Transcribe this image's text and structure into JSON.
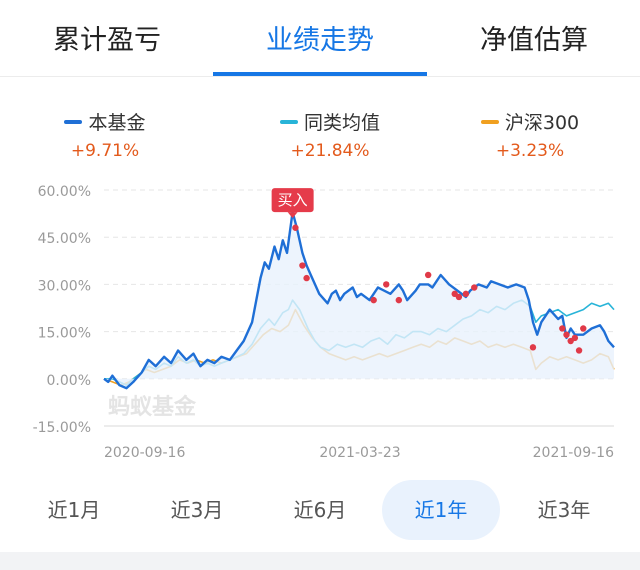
{
  "tabs": [
    {
      "label": "累计盈亏",
      "active": false
    },
    {
      "label": "业绩走势",
      "active": true
    },
    {
      "label": "净值估算",
      "active": false
    }
  ],
  "legend": [
    {
      "name": "本基金",
      "return": "+9.71%",
      "color": "#1f6fd6"
    },
    {
      "name": "同类均值",
      "return": "+21.84%",
      "color": "#28b4d8"
    },
    {
      "name": "沪深300",
      "return": "+3.23%",
      "color": "#f0a020"
    }
  ],
  "chart_data": {
    "type": "line",
    "ylim": [
      -15,
      60
    ],
    "y_ticks": [
      "60.00%",
      "45.00%",
      "30.00%",
      "15.00%",
      "0.00%",
      "-15.00%"
    ],
    "x_ticks": [
      "2020-09-16",
      "2021-03-23",
      "2021-09-16"
    ],
    "x_range": [
      "2020-09-16",
      "2021-09-16"
    ],
    "grid": true,
    "watermark": "蚂蚁基金",
    "buy_label": "买入",
    "buy_marker": {
      "x": "2021-01-29",
      "y": 52
    },
    "series": [
      {
        "name": "本基金",
        "color": "#1f6fd6",
        "fill": true,
        "points": [
          [
            "2020-09-16",
            0
          ],
          [
            "2020-09-19",
            -1
          ],
          [
            "2020-09-22",
            1
          ],
          [
            "2020-09-27",
            -2
          ],
          [
            "2020-10-02",
            -3
          ],
          [
            "2020-10-07",
            -1
          ],
          [
            "2020-10-13",
            2
          ],
          [
            "2020-10-18",
            6
          ],
          [
            "2020-10-23",
            4
          ],
          [
            "2020-10-29",
            7
          ],
          [
            "2020-11-03",
            5
          ],
          [
            "2020-11-08",
            9
          ],
          [
            "2020-11-14",
            6
          ],
          [
            "2020-11-19",
            8
          ],
          [
            "2020-11-24",
            4
          ],
          [
            "2020-11-29",
            6
          ],
          [
            "2020-12-04",
            5
          ],
          [
            "2020-12-09",
            7
          ],
          [
            "2020-12-15",
            6
          ],
          [
            "2020-12-20",
            9
          ],
          [
            "2020-12-25",
            12
          ],
          [
            "2020-12-28",
            15
          ],
          [
            "2020-12-31",
            18
          ],
          [
            "2021-01-03",
            25
          ],
          [
            "2021-01-06",
            32
          ],
          [
            "2021-01-09",
            37
          ],
          [
            "2021-01-12",
            35
          ],
          [
            "2021-01-16",
            42
          ],
          [
            "2021-01-19",
            38
          ],
          [
            "2021-01-22",
            44
          ],
          [
            "2021-01-25",
            40
          ],
          [
            "2021-01-29",
            53
          ],
          [
            "2021-02-01",
            48
          ],
          [
            "2021-02-05",
            40
          ],
          [
            "2021-02-08",
            36
          ],
          [
            "2021-02-11",
            33
          ],
          [
            "2021-02-14",
            30
          ],
          [
            "2021-02-17",
            27
          ],
          [
            "2021-02-23",
            24
          ],
          [
            "2021-02-26",
            27
          ],
          [
            "2021-03-01",
            28
          ],
          [
            "2021-03-04",
            25
          ],
          [
            "2021-03-07",
            27
          ],
          [
            "2021-03-13",
            29
          ],
          [
            "2021-03-16",
            26
          ],
          [
            "2021-03-19",
            27
          ],
          [
            "2021-03-25",
            25
          ],
          [
            "2021-03-28",
            27
          ],
          [
            "2021-03-31",
            29
          ],
          [
            "2021-04-09",
            27
          ],
          [
            "2021-04-15",
            30
          ],
          [
            "2021-04-18",
            28
          ],
          [
            "2021-04-21",
            25
          ],
          [
            "2021-04-27",
            28
          ],
          [
            "2021-04-30",
            30
          ],
          [
            "2021-05-06",
            30
          ],
          [
            "2021-05-09",
            29
          ],
          [
            "2021-05-12",
            31
          ],
          [
            "2021-05-15",
            33
          ],
          [
            "2021-05-21",
            30
          ],
          [
            "2021-05-27",
            28
          ],
          [
            "2021-06-02",
            26
          ],
          [
            "2021-06-05",
            28
          ],
          [
            "2021-06-11",
            30
          ],
          [
            "2021-06-17",
            29
          ],
          [
            "2021-06-20",
            31
          ],
          [
            "2021-06-26",
            30
          ],
          [
            "2021-07-02",
            29
          ],
          [
            "2021-07-08",
            30
          ],
          [
            "2021-07-14",
            29
          ],
          [
            "2021-07-17",
            25
          ],
          [
            "2021-07-20",
            18
          ],
          [
            "2021-07-23",
            14
          ],
          [
            "2021-07-26",
            18
          ],
          [
            "2021-07-29",
            20
          ],
          [
            "2021-08-01",
            22
          ],
          [
            "2021-08-07",
            19
          ],
          [
            "2021-08-10",
            20
          ],
          [
            "2021-08-13",
            13
          ],
          [
            "2021-08-16",
            16
          ],
          [
            "2021-08-19",
            14
          ],
          [
            "2021-08-25",
            14
          ],
          [
            "2021-08-31",
            16
          ],
          [
            "2021-09-06",
            17
          ],
          [
            "2021-09-09",
            15
          ],
          [
            "2021-09-12",
            12
          ],
          [
            "2021-09-16",
            10
          ]
        ]
      },
      {
        "name": "同类均值",
        "color": "#28b4d8",
        "fill": false,
        "points": [
          [
            "2020-09-16",
            0
          ],
          [
            "2020-09-22",
            0
          ],
          [
            "2020-09-27",
            -1
          ],
          [
            "2020-10-02",
            -2
          ],
          [
            "2020-10-07",
            0
          ],
          [
            "2020-10-13",
            2
          ],
          [
            "2020-10-18",
            4
          ],
          [
            "2020-10-23",
            3
          ],
          [
            "2020-10-29",
            5
          ],
          [
            "2020-11-03",
            4
          ],
          [
            "2020-11-08",
            7
          ],
          [
            "2020-11-14",
            5
          ],
          [
            "2020-11-19",
            6
          ],
          [
            "2020-11-24",
            4
          ],
          [
            "2020-11-29",
            5
          ],
          [
            "2020-12-04",
            4
          ],
          [
            "2020-12-09",
            5
          ],
          [
            "2020-12-15",
            6
          ],
          [
            "2020-12-20",
            7
          ],
          [
            "2020-12-25",
            8
          ],
          [
            "2020-12-31",
            11
          ],
          [
            "2021-01-06",
            16
          ],
          [
            "2021-01-12",
            19
          ],
          [
            "2021-01-16",
            17
          ],
          [
            "2021-01-22",
            21
          ],
          [
            "2021-01-26",
            22
          ],
          [
            "2021-01-29",
            25
          ],
          [
            "2021-02-03",
            22
          ],
          [
            "2021-02-09",
            16
          ],
          [
            "2021-02-14",
            12
          ],
          [
            "2021-02-18",
            10
          ],
          [
            "2021-02-24",
            9
          ],
          [
            "2021-03-02",
            11
          ],
          [
            "2021-03-08",
            10
          ],
          [
            "2021-03-14",
            11
          ],
          [
            "2021-03-20",
            10
          ],
          [
            "2021-03-26",
            12
          ],
          [
            "2021-04-01",
            13
          ],
          [
            "2021-04-07",
            11
          ],
          [
            "2021-04-13",
            14
          ],
          [
            "2021-04-19",
            13
          ],
          [
            "2021-04-25",
            15
          ],
          [
            "2021-05-01",
            15
          ],
          [
            "2021-05-07",
            14
          ],
          [
            "2021-05-13",
            16
          ],
          [
            "2021-05-19",
            15
          ],
          [
            "2021-05-25",
            17
          ],
          [
            "2021-05-31",
            19
          ],
          [
            "2021-06-06",
            20
          ],
          [
            "2021-06-12",
            22
          ],
          [
            "2021-06-18",
            21
          ],
          [
            "2021-06-24",
            23
          ],
          [
            "2021-06-30",
            22
          ],
          [
            "2021-07-06",
            24
          ],
          [
            "2021-07-12",
            25
          ],
          [
            "2021-07-18",
            23
          ],
          [
            "2021-07-22",
            18
          ],
          [
            "2021-07-26",
            20
          ],
          [
            "2021-08-01",
            21
          ],
          [
            "2021-08-07",
            22
          ],
          [
            "2021-08-13",
            20
          ],
          [
            "2021-08-19",
            21
          ],
          [
            "2021-08-25",
            22
          ],
          [
            "2021-08-31",
            24
          ],
          [
            "2021-09-06",
            23
          ],
          [
            "2021-09-12",
            24
          ],
          [
            "2021-09-16",
            22
          ]
        ]
      },
      {
        "name": "沪深300",
        "color": "#f0a020",
        "fill": false,
        "points": [
          [
            "2020-09-16",
            0
          ],
          [
            "2020-09-22",
            -1
          ],
          [
            "2020-09-28",
            -2
          ],
          [
            "2020-10-04",
            -1
          ],
          [
            "2020-10-10",
            1
          ],
          [
            "2020-10-16",
            3
          ],
          [
            "2020-10-22",
            2
          ],
          [
            "2020-10-28",
            3
          ],
          [
            "2020-11-03",
            4
          ],
          [
            "2020-11-09",
            6
          ],
          [
            "2020-11-15",
            5
          ],
          [
            "2020-11-21",
            6
          ],
          [
            "2020-11-27",
            5
          ],
          [
            "2020-12-03",
            6
          ],
          [
            "2020-12-09",
            5
          ],
          [
            "2020-12-15",
            6
          ],
          [
            "2020-12-21",
            7
          ],
          [
            "2020-12-27",
            8
          ],
          [
            "2021-01-02",
            11
          ],
          [
            "2021-01-08",
            14
          ],
          [
            "2021-01-14",
            16
          ],
          [
            "2021-01-20",
            15
          ],
          [
            "2021-01-26",
            17
          ],
          [
            "2021-01-31",
            22
          ],
          [
            "2021-02-06",
            17
          ],
          [
            "2021-02-12",
            13
          ],
          [
            "2021-02-18",
            10
          ],
          [
            "2021-02-24",
            8
          ],
          [
            "2021-03-02",
            7
          ],
          [
            "2021-03-08",
            6
          ],
          [
            "2021-03-14",
            7
          ],
          [
            "2021-03-20",
            6
          ],
          [
            "2021-03-26",
            7
          ],
          [
            "2021-04-01",
            8
          ],
          [
            "2021-04-07",
            7
          ],
          [
            "2021-04-13",
            8
          ],
          [
            "2021-04-19",
            9
          ],
          [
            "2021-04-25",
            10
          ],
          [
            "2021-05-01",
            11
          ],
          [
            "2021-05-07",
            10
          ],
          [
            "2021-05-13",
            12
          ],
          [
            "2021-05-19",
            11
          ],
          [
            "2021-05-25",
            13
          ],
          [
            "2021-05-31",
            12
          ],
          [
            "2021-06-06",
            11
          ],
          [
            "2021-06-12",
            12
          ],
          [
            "2021-06-18",
            10
          ],
          [
            "2021-06-24",
            11
          ],
          [
            "2021-06-30",
            10
          ],
          [
            "2021-07-06",
            11
          ],
          [
            "2021-07-12",
            10
          ],
          [
            "2021-07-18",
            9
          ],
          [
            "2021-07-22",
            3
          ],
          [
            "2021-07-26",
            5
          ],
          [
            "2021-08-01",
            7
          ],
          [
            "2021-08-07",
            6
          ],
          [
            "2021-08-13",
            7
          ],
          [
            "2021-08-19",
            6
          ],
          [
            "2021-08-25",
            5
          ],
          [
            "2021-08-31",
            6
          ],
          [
            "2021-09-06",
            8
          ],
          [
            "2021-09-12",
            7
          ],
          [
            "2021-09-16",
            3
          ]
        ]
      }
    ],
    "trade_dots": [
      [
        "2021-01-31",
        48
      ],
      [
        "2021-02-05",
        36
      ],
      [
        "2021-02-08",
        32
      ],
      [
        "2021-03-28",
        25
      ],
      [
        "2021-04-06",
        30
      ],
      [
        "2021-04-15",
        25
      ],
      [
        "2021-05-06",
        33
      ],
      [
        "2021-05-25",
        27
      ],
      [
        "2021-05-28",
        26
      ],
      [
        "2021-06-02",
        27
      ],
      [
        "2021-06-08",
        29
      ],
      [
        "2021-07-20",
        10
      ],
      [
        "2021-08-10",
        16
      ],
      [
        "2021-08-13",
        14
      ],
      [
        "2021-08-16",
        12
      ],
      [
        "2021-08-19",
        13
      ],
      [
        "2021-08-22",
        9
      ],
      [
        "2021-08-25",
        16
      ]
    ]
  },
  "periods": [
    {
      "label": "近1月",
      "active": false
    },
    {
      "label": "近3月",
      "active": false
    },
    {
      "label": "近6月",
      "active": false
    },
    {
      "label": "近1年",
      "active": true
    },
    {
      "label": "近3年",
      "active": false
    }
  ]
}
